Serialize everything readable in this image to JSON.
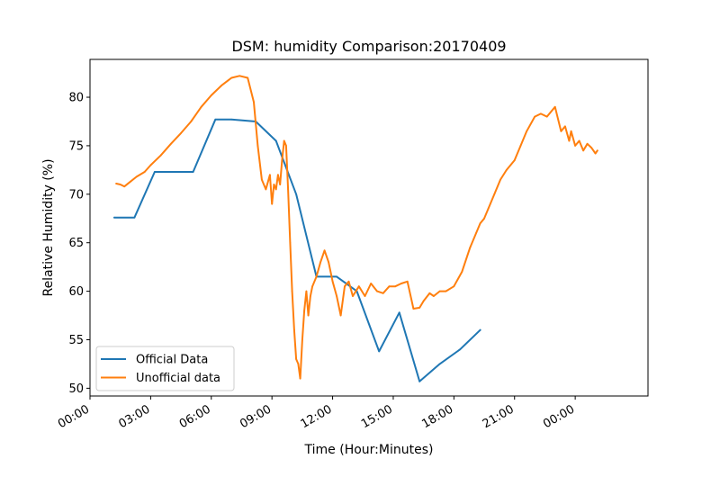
{
  "chart_data": {
    "type": "line",
    "title": "DSM: humidity Comparison:20170409",
    "xlabel": "Time (Hour:Minutes)",
    "ylabel": "Relative Humidity (%)",
    "x_unit": "hours",
    "xlim": [
      0,
      27.6
    ],
    "ylim": [
      49.2,
      83.9
    ],
    "x_ticks": [
      0,
      3,
      6,
      9,
      12,
      15,
      18,
      21,
      24
    ],
    "x_tick_labels": [
      "00:00",
      "03:00",
      "06:00",
      "09:00",
      "12:00",
      "15:00",
      "18:00",
      "21:00",
      "00:00"
    ],
    "y_ticks": [
      50,
      55,
      60,
      65,
      70,
      75,
      80
    ],
    "y_tick_labels": [
      "50",
      "55",
      "60",
      "65",
      "70",
      "75",
      "80"
    ],
    "grid": false,
    "legend": {
      "position": "lower-left"
    },
    "series": [
      {
        "name": "Official Data",
        "color": "#1f77b4",
        "x": [
          1.2,
          2.2,
          3.2,
          5.1,
          6.2,
          7.0,
          8.2,
          9.2,
          10.2,
          11.2,
          12.2,
          13.2,
          14.3,
          15.3,
          16.3,
          17.3,
          18.3,
          19.3
        ],
        "y": [
          67.6,
          67.6,
          72.3,
          72.3,
          77.7,
          77.7,
          77.5,
          75.5,
          70.0,
          61.5,
          61.5,
          60.0,
          53.8,
          57.8,
          50.7,
          52.5,
          54.0,
          56.0
        ]
      },
      {
        "name": "Unofficial data",
        "color": "#ff7f0e",
        "x": [
          1.3,
          1.5,
          1.7,
          2.0,
          2.3,
          2.7,
          3.0,
          3.5,
          4.0,
          4.5,
          5.0,
          5.5,
          6.0,
          6.5,
          7.0,
          7.4,
          7.8,
          8.1,
          8.3,
          8.5,
          8.7,
          8.9,
          9.0,
          9.1,
          9.2,
          9.3,
          9.4,
          9.5,
          9.6,
          9.7,
          9.8,
          9.9,
          10.0,
          10.1,
          10.2,
          10.3,
          10.4,
          10.5,
          10.6,
          10.7,
          10.8,
          10.9,
          11.0,
          11.2,
          11.4,
          11.6,
          11.8,
          12.0,
          12.2,
          12.4,
          12.6,
          12.8,
          13.0,
          13.3,
          13.6,
          13.9,
          14.2,
          14.5,
          14.8,
          15.1,
          15.4,
          15.7,
          16.0,
          16.3,
          16.5,
          16.8,
          17.0,
          17.3,
          17.6,
          18.0,
          18.4,
          18.8,
          19.1,
          19.3,
          19.5,
          19.7,
          20.0,
          20.3,
          20.6,
          21.0,
          21.3,
          21.6,
          22.0,
          22.3,
          22.6,
          23.0,
          23.3,
          23.5,
          23.7,
          23.8,
          24.0,
          24.2,
          24.4,
          24.6,
          24.8,
          25.0,
          25.1
        ],
        "y": [
          71.1,
          71.0,
          70.8,
          71.3,
          71.8,
          72.3,
          73.0,
          74.0,
          75.2,
          76.3,
          77.5,
          79.0,
          80.2,
          81.2,
          82.0,
          82.2,
          82.0,
          79.5,
          75.0,
          71.5,
          70.5,
          72.0,
          69.0,
          71.0,
          70.5,
          72.0,
          71.0,
          73.5,
          75.5,
          75.0,
          70.5,
          65.0,
          60.0,
          56.0,
          53.0,
          52.5,
          51.0,
          55.0,
          58.0,
          60.0,
          57.5,
          59.5,
          60.5,
          61.5,
          63.0,
          64.2,
          63.0,
          61.0,
          59.5,
          57.5,
          60.5,
          61.0,
          59.5,
          60.5,
          59.5,
          60.8,
          60.0,
          59.8,
          60.5,
          60.5,
          60.8,
          61.0,
          58.2,
          58.3,
          59.0,
          59.8,
          59.5,
          60.0,
          60.0,
          60.5,
          62.0,
          64.5,
          66.0,
          67.0,
          67.5,
          68.5,
          70.0,
          71.5,
          72.5,
          73.5,
          75.0,
          76.5,
          78.0,
          78.3,
          78.0,
          79.0,
          76.5,
          77.0,
          75.5,
          76.5,
          75.0,
          75.5,
          74.5,
          75.2,
          74.8,
          74.2,
          74.5
        ]
      }
    ]
  }
}
